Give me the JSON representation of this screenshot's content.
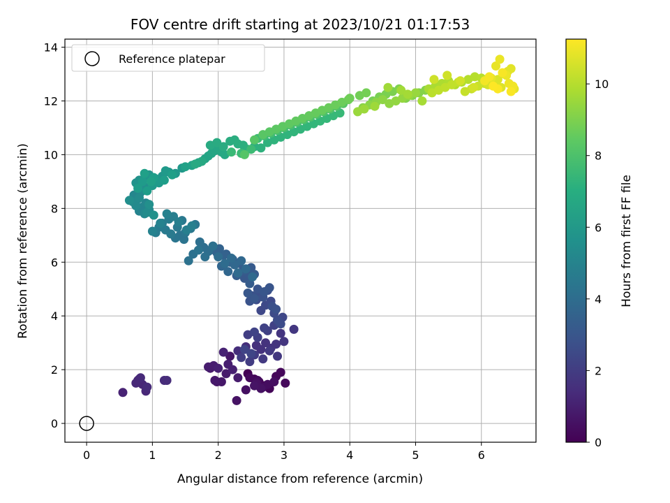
{
  "chart_data": {
    "type": "scatter",
    "title": "FOV centre drift starting at 2023/10/21 01:17:53",
    "xlabel": "Angular distance from reference (arcmin)",
    "ylabel": "Rotation from reference (arcmin)",
    "xlim": [
      -0.33,
      6.83
    ],
    "ylim": [
      -0.7,
      14.3
    ],
    "xticks": [
      0,
      1,
      2,
      3,
      4,
      5,
      6
    ],
    "yticks": [
      0,
      2,
      4,
      6,
      8,
      10,
      12,
      14
    ],
    "grid": true,
    "legend": {
      "placement": "top-left",
      "entries": [
        "Reference platepar"
      ]
    },
    "reference_point": {
      "x": 0,
      "y": 0,
      "label": "Reference platepar"
    },
    "colorbar": {
      "label": "Hours from first FF file",
      "colormap": "viridis",
      "range": [
        0,
        11.25
      ],
      "ticks": [
        0,
        2,
        4,
        6,
        8,
        10
      ]
    },
    "x": [
      2.45,
      2.55,
      2.62,
      2.7,
      2.78,
      2.88,
      2.95,
      3.02,
      2.48,
      2.6,
      2.68,
      2.75,
      2.85,
      2.42,
      2.58,
      2.65,
      2.28,
      2.55,
      1.98,
      2.18,
      2.05,
      1.95,
      1.88,
      2.12,
      2.3,
      1.85,
      1.93,
      2.15,
      2.22,
      2.0,
      2.08,
      0.55,
      0.78,
      0.85,
      0.8,
      0.9,
      0.75,
      0.82,
      0.92,
      1.18,
      1.22,
      2.3,
      2.42,
      2.5,
      2.58,
      2.65,
      2.72,
      2.8,
      2.88,
      2.95,
      3.0,
      3.15,
      2.9,
      2.78,
      2.68,
      2.55,
      2.48,
      2.35,
      2.45,
      2.6,
      2.75,
      2.85,
      2.7,
      2.55,
      2.4,
      2.5,
      2.92,
      2.98,
      2.65,
      2.72,
      2.8,
      2.85,
      2.9,
      2.95,
      2.58,
      2.62,
      2.75,
      2.82,
      2.88,
      2.68,
      2.52,
      2.48,
      2.6,
      2.78,
      2.7,
      2.55,
      2.45,
      2.4,
      2.45,
      2.5,
      2.55,
      2.48,
      2.38,
      2.32,
      2.28,
      2.22,
      2.18,
      2.12,
      2.08,
      2.02,
      1.98,
      1.92,
      1.88,
      2.05,
      2.15,
      2.25,
      2.35,
      2.42,
      2.52,
      2.3,
      2.2,
      2.1,
      2.0,
      1.85,
      1.78,
      1.72,
      1.8,
      1.92,
      1.62,
      1.55,
      1.7,
      1.48,
      1.42,
      1.35,
      1.5,
      1.58,
      1.65,
      1.45,
      1.38,
      1.28,
      1.2,
      1.1,
      1.05,
      1.15,
      1.25,
      1.32,
      1.4,
      1.52,
      1.6,
      1.22,
      1.12,
      1.0,
      0.8,
      0.85,
      0.9,
      0.78,
      0.72,
      0.82,
      0.88,
      0.95,
      0.75,
      0.7,
      0.8,
      0.92,
      0.85,
      0.78,
      0.65,
      0.88,
      0.95,
      1.02,
      0.75,
      0.8,
      0.9,
      0.95,
      1.05,
      1.15,
      1.25,
      1.35,
      1.45,
      1.0,
      1.1,
      1.2,
      0.85,
      0.78,
      0.92,
      1.02,
      1.18,
      1.3,
      0.88,
      0.98,
      1.5,
      1.6,
      1.7,
      1.8,
      1.85,
      1.9,
      1.95,
      2.0,
      2.05,
      2.1,
      1.75,
      1.65,
      1.88,
      1.98,
      2.08,
      2.18,
      2.25,
      2.3,
      2.38,
      2.45,
      2.55,
      2.65,
      2.75,
      2.85,
      2.95,
      3.05,
      3.15,
      3.25,
      3.35,
      3.45,
      3.55,
      3.65,
      3.75,
      3.85,
      2.2,
      2.35,
      2.5,
      2.6,
      2.7,
      2.8,
      2.9,
      3.0,
      3.1,
      3.2,
      3.3,
      3.4,
      3.5,
      3.6,
      3.7,
      3.8,
      3.9,
      2.4,
      2.55,
      2.68,
      2.78,
      2.88,
      2.98,
      3.08,
      3.18,
      3.28,
      3.38,
      3.48,
      3.58,
      3.68,
      3.78,
      3.88,
      3.98,
      4.0,
      4.15,
      4.25,
      4.35,
      4.45,
      4.55,
      4.65,
      4.75,
      4.85,
      4.95,
      5.05,
      5.15,
      4.2,
      4.3,
      4.4,
      4.5,
      4.6,
      4.7,
      4.8,
      4.9,
      5.0,
      4.12,
      4.22,
      4.38,
      4.58,
      4.78,
      4.88,
      5.1,
      5.2,
      5.3,
      5.4,
      5.5,
      5.6,
      5.7,
      5.8,
      5.9,
      6.0,
      5.25,
      5.35,
      5.45,
      5.55,
      5.65,
      5.75,
      5.85,
      5.95,
      6.05,
      5.28,
      5.48,
      5.68,
      5.88,
      6.1,
      6.2,
      6.25,
      6.3,
      6.35,
      6.4,
      6.45,
      6.5,
      6.15,
      6.22,
      6.28,
      6.38,
      6.42,
      6.48,
      6.05,
      6.12,
      6.32,
      6.45,
      6.25,
      6.18
    ],
    "y": [
      1.85,
      1.65,
      1.55,
      1.4,
      1.3,
      1.75,
      1.9,
      1.5,
      1.7,
      1.6,
      1.35,
      1.45,
      1.55,
      1.25,
      1.5,
      1.3,
      0.85,
      1.4,
      1.55,
      2.5,
      1.55,
      1.6,
      2.05,
      1.85,
      1.7,
      2.1,
      2.15,
      2.2,
      2.0,
      2.05,
      2.65,
      1.15,
      1.6,
      1.45,
      1.65,
      1.2,
      1.5,
      1.7,
      1.35,
      1.6,
      1.6,
      2.7,
      2.85,
      2.6,
      2.9,
      2.75,
      3.0,
      2.8,
      2.95,
      3.35,
      3.05,
      3.5,
      2.5,
      2.7,
      2.4,
      2.55,
      2.3,
      2.45,
      3.3,
      3.2,
      3.45,
      3.65,
      3.55,
      3.4,
      2.75,
      2.6,
      3.75,
      3.95,
      4.2,
      4.4,
      4.55,
      4.1,
      3.85,
      3.7,
      4.6,
      4.8,
      4.95,
      4.35,
      4.25,
      4.7,
      4.75,
      4.55,
      5.0,
      5.05,
      4.9,
      4.65,
      4.85,
      5.4,
      5.6,
      5.8,
      5.55,
      5.2,
      5.7,
      5.95,
      5.5,
      6.1,
      6.0,
      6.3,
      6.25,
      6.5,
      6.35,
      6.6,
      6.45,
      5.85,
      5.65,
      5.9,
      6.05,
      5.75,
      5.45,
      5.6,
      6.15,
      5.95,
      6.2,
      6.4,
      6.55,
      6.75,
      6.2,
      6.6,
      6.3,
      6.05,
      6.45,
      6.85,
      7.0,
      6.9,
      7.1,
      7.25,
      7.4,
      7.55,
      7.3,
      7.05,
      7.2,
      7.3,
      7.1,
      7.45,
      7.6,
      7.7,
      7.5,
      7.2,
      7.35,
      7.8,
      7.45,
      7.15,
      7.9,
      8.05,
      8.2,
      8.35,
      8.5,
      8.6,
      7.8,
      7.95,
      8.1,
      8.25,
      8.4,
      7.85,
      8.7,
      8.9,
      8.3,
      8.8,
      8.15,
      7.75,
      8.95,
      9.05,
      9.15,
      9.25,
      9.1,
      9.2,
      9.35,
      9.3,
      9.5,
      8.85,
      8.95,
      9.4,
      9.0,
      8.75,
      8.65,
      9.15,
      9.05,
      9.25,
      9.3,
      9.0,
      9.55,
      9.6,
      9.7,
      9.85,
      9.95,
      10.05,
      10.15,
      10.25,
      10.1,
      10.0,
      9.75,
      9.65,
      10.35,
      10.45,
      10.3,
      10.5,
      10.55,
      10.4,
      10.35,
      10.2,
      10.3,
      10.25,
      10.45,
      10.55,
      10.65,
      10.75,
      10.85,
      10.95,
      11.05,
      11.15,
      11.25,
      11.35,
      11.45,
      11.55,
      10.1,
      10.05,
      10.2,
      10.6,
      10.7,
      10.8,
      10.9,
      11.0,
      11.1,
      11.2,
      11.3,
      11.4,
      11.5,
      11.6,
      11.7,
      11.8,
      11.9,
      10.0,
      10.55,
      10.75,
      10.85,
      10.95,
      11.05,
      11.15,
      11.25,
      11.35,
      11.45,
      11.55,
      11.65,
      11.75,
      11.85,
      11.95,
      12.05,
      12.1,
      12.2,
      12.3,
      12.0,
      12.15,
      12.25,
      12.35,
      12.45,
      12.1,
      12.2,
      12.3,
      12.4,
      11.75,
      11.85,
      11.95,
      12.05,
      11.9,
      12.0,
      12.1,
      12.2,
      12.3,
      11.6,
      11.7,
      11.8,
      12.5,
      12.4,
      12.25,
      12.0,
      12.45,
      12.55,
      12.65,
      12.75,
      12.6,
      12.7,
      12.8,
      12.9,
      12.85,
      12.3,
      12.4,
      12.5,
      12.6,
      12.7,
      12.35,
      12.45,
      12.55,
      12.65,
      12.8,
      12.95,
      12.75,
      12.5,
      12.6,
      12.7,
      12.8,
      12.5,
      13.0,
      13.1,
      13.2,
      12.45,
      12.85,
      13.3,
      13.55,
      12.95,
      12.65,
      12.55,
      12.75,
      12.9,
      13.05,
      12.35,
      12.45,
      12.55
    ]
  }
}
